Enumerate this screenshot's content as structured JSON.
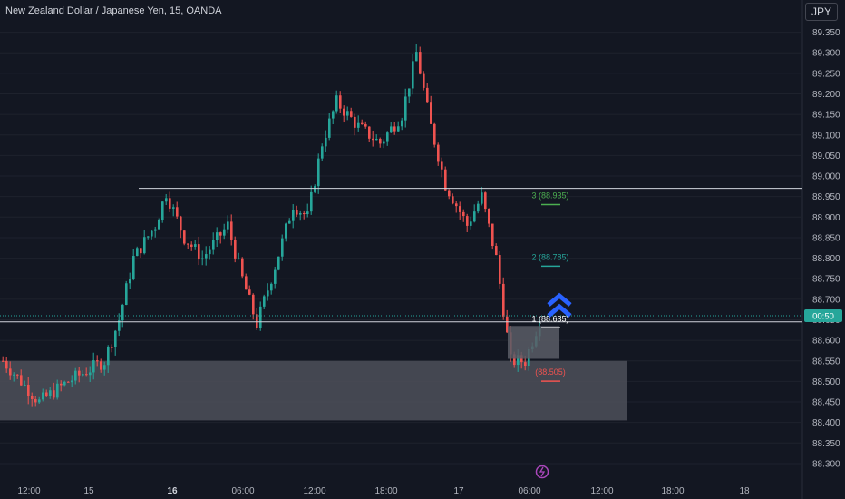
{
  "title": "New Zealand Dollar / Japanese Yen, 15, OANDA",
  "currency_button": "JPY",
  "countdown": "00:50",
  "colors": {
    "background": "#131722",
    "up": "#26a69a",
    "down": "#ef5350",
    "grid": "#1e222d",
    "zone": "#4a4d57",
    "arrow": "#2962ff"
  },
  "chart_data": {
    "type": "candlestick",
    "yrange": [
      88.28,
      89.38
    ],
    "y_ticks": [
      88.3,
      88.35,
      88.4,
      88.45,
      88.5,
      88.55,
      88.6,
      88.65,
      88.7,
      88.75,
      88.8,
      88.85,
      88.9,
      88.95,
      89.0,
      89.05,
      89.1,
      89.15,
      89.2,
      89.25,
      89.3,
      89.35
    ],
    "x_ticks": [
      {
        "label": "12:00",
        "bold": false
      },
      {
        "label": "15",
        "bold": false
      },
      {
        "label": "16",
        "bold": true
      },
      {
        "label": "06:00",
        "bold": false
      },
      {
        "label": "12:00",
        "bold": false
      },
      {
        "label": "18:00",
        "bold": false
      },
      {
        "label": "17",
        "bold": false
      },
      {
        "label": "06:00",
        "bold": false
      },
      {
        "label": "12:00",
        "bold": false
      },
      {
        "label": "18:00",
        "bold": false
      },
      {
        "label": "18",
        "bold": false
      }
    ],
    "key_path": [
      [
        0,
        88.55
      ],
      [
        10,
        88.45
      ],
      [
        18,
        88.5
      ],
      [
        28,
        88.55
      ],
      [
        32,
        88.65
      ],
      [
        36,
        88.8
      ],
      [
        42,
        88.88
      ],
      [
        45,
        88.96
      ],
      [
        50,
        88.85
      ],
      [
        55,
        88.8
      ],
      [
        62,
        88.88
      ],
      [
        66,
        88.75
      ],
      [
        70,
        88.64
      ],
      [
        75,
        88.78
      ],
      [
        80,
        88.93
      ],
      [
        84,
        88.9
      ],
      [
        88,
        89.08
      ],
      [
        92,
        89.18
      ],
      [
        98,
        89.12
      ],
      [
        104,
        89.08
      ],
      [
        110,
        89.15
      ],
      [
        114,
        89.3
      ],
      [
        118,
        89.12
      ],
      [
        122,
        88.98
      ],
      [
        128,
        88.88
      ],
      [
        132,
        88.95
      ],
      [
        136,
        88.8
      ],
      [
        140,
        88.55
      ],
      [
        144,
        88.55
      ],
      [
        148,
        88.65
      ]
    ],
    "horizontal_lines": [
      {
        "price": 88.97,
        "color": "#d1d4dc"
      },
      {
        "price": 88.645,
        "color": "#d1d4dc"
      }
    ],
    "current_price": 88.66,
    "zones": [
      {
        "top": 88.55,
        "bottom": 88.405,
        "color": "#4a4d57"
      },
      {
        "top": 88.635,
        "bottom": 88.555,
        "color": "#5a5d66"
      }
    ],
    "targets": [
      {
        "label": "3 (88.935)",
        "price": 88.935,
        "color": "#4caf50"
      },
      {
        "label": "2 (88.785)",
        "price": 88.785,
        "color": "#26a69a"
      },
      {
        "label": "1 (88.635)",
        "price": 88.635,
        "color": "#ffffff"
      },
      {
        "label": "(88.505)",
        "price": 88.505,
        "color": "#ef5350"
      }
    ]
  }
}
